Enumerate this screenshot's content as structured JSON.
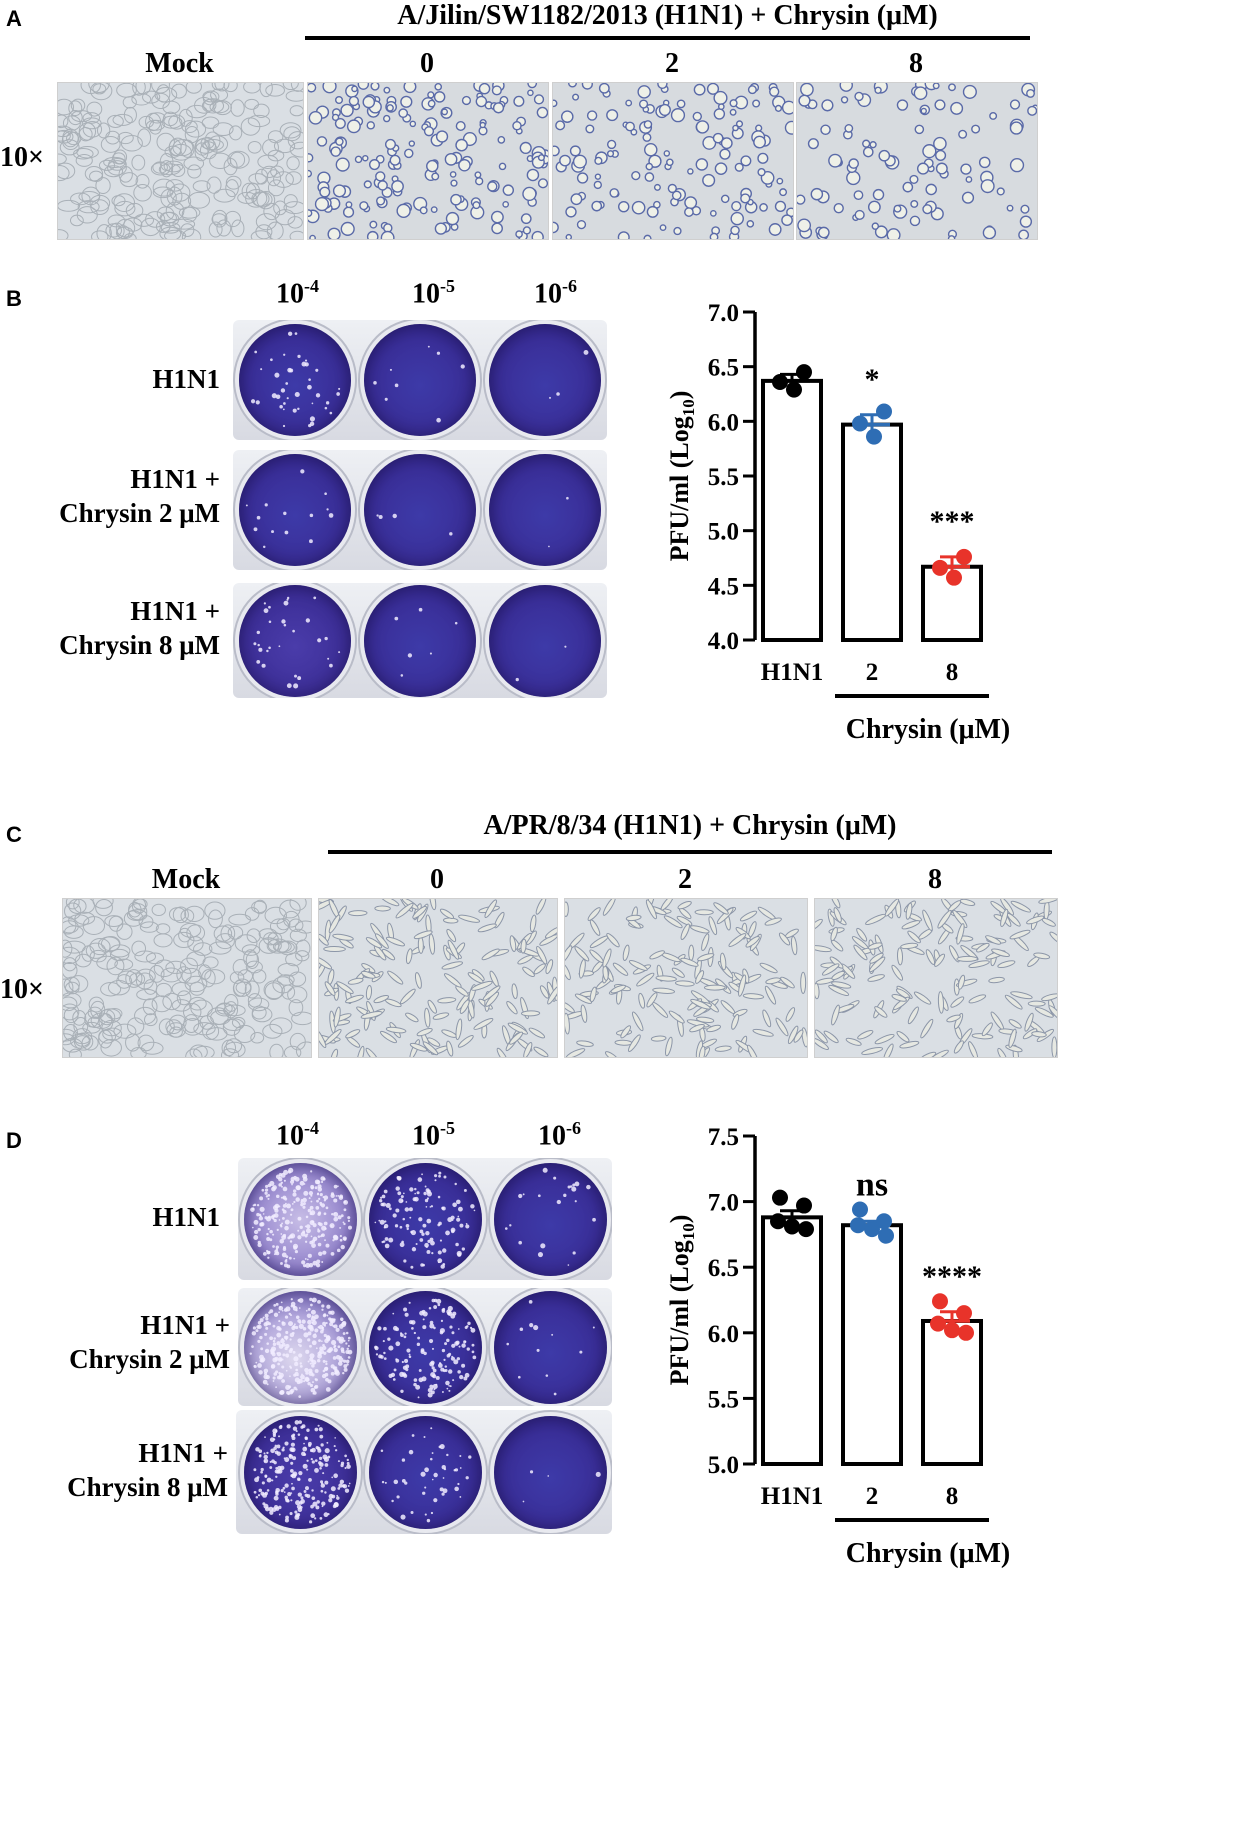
{
  "panels": {
    "A": {
      "letter": "A",
      "strain_header": "A/Jilin/SW1182/2013 (H1N1) + Chrysin (μM)",
      "columns": [
        "Mock",
        "0",
        "2",
        "8"
      ],
      "magnification": "10×"
    },
    "B": {
      "letter": "B",
      "dilutions": [
        {
          "base": "10",
          "exp": "-4"
        },
        {
          "base": "10",
          "exp": "-5"
        },
        {
          "base": "10",
          "exp": "-6"
        }
      ],
      "rows": [
        {
          "line1": "H1N1",
          "line2": ""
        },
        {
          "line1": "H1N1 +",
          "line2": "Chrysin 2 μM"
        },
        {
          "line1": "H1N1 +",
          "line2": "Chrysin 8 μM"
        }
      ]
    },
    "C": {
      "letter": "C",
      "strain_header": "A/PR/8/34 (H1N1) + Chrysin (μM)",
      "columns": [
        "Mock",
        "0",
        "2",
        "8"
      ],
      "magnification": "10×"
    },
    "D": {
      "letter": "D",
      "dilutions": [
        {
          "base": "10",
          "exp": "-4"
        },
        {
          "base": "10",
          "exp": "-5"
        },
        {
          "base": "10",
          "exp": "-6"
        }
      ],
      "rows": [
        {
          "line1": "H1N1",
          "line2": ""
        },
        {
          "line1": "H1N1 +",
          "line2": "Chrysin 2 μM"
        },
        {
          "line1": "H1N1 +",
          "line2": "Chrysin 8 μM"
        }
      ]
    }
  },
  "colors": {
    "black_series": "#000000",
    "blue_series": "#2e6db4",
    "red_series": "#e8332a",
    "plaque_stain": "#3b2a9a"
  },
  "chart_data": [
    {
      "panel": "B",
      "type": "bar",
      "categories": [
        "H1N1",
        "2",
        "8"
      ],
      "group_label": "Chrysin (μM)",
      "ylabel_main": "PFU/ml (Log",
      "ylabel_sub": "10",
      "ylabel_end": ")",
      "ylim": [
        4.0,
        7.0
      ],
      "yticks": [
        "4.0",
        "4.5",
        "5.0",
        "5.5",
        "6.0",
        "6.5",
        "7.0"
      ],
      "means": [
        6.37,
        5.97,
        4.67
      ],
      "sem": [
        0.06,
        0.09,
        0.09
      ],
      "points": [
        [
          6.45,
          6.36,
          6.29
        ],
        [
          6.09,
          5.98,
          5.86
        ],
        [
          4.76,
          4.66,
          4.57
        ]
      ],
      "point_colors": [
        "#000000",
        "#2e6db4",
        "#e8332a"
      ],
      "significance": [
        "",
        "*",
        "***"
      ]
    },
    {
      "panel": "D",
      "type": "bar",
      "categories": [
        "H1N1",
        "2",
        "8"
      ],
      "group_label": "Chrysin (μM)",
      "ylabel_main": "PFU/ml (Log",
      "ylabel_sub": "10",
      "ylabel_end": ")",
      "ylim": [
        5.0,
        7.5
      ],
      "yticks": [
        "5.0",
        "5.5",
        "6.0",
        "6.5",
        "7.0",
        "7.5"
      ],
      "means": [
        6.88,
        6.82,
        6.09
      ],
      "sem": [
        0.05,
        0.03,
        0.07
      ],
      "points": [
        [
          7.03,
          6.97,
          6.85,
          6.81,
          6.79
        ],
        [
          6.94,
          6.85,
          6.82,
          6.79,
          6.74
        ],
        [
          6.24,
          6.15,
          6.07,
          6.02,
          6.0
        ]
      ],
      "point_colors": [
        "#000000",
        "#2e6db4",
        "#e8332a"
      ],
      "significance": [
        "",
        "ns",
        "****"
      ]
    }
  ]
}
